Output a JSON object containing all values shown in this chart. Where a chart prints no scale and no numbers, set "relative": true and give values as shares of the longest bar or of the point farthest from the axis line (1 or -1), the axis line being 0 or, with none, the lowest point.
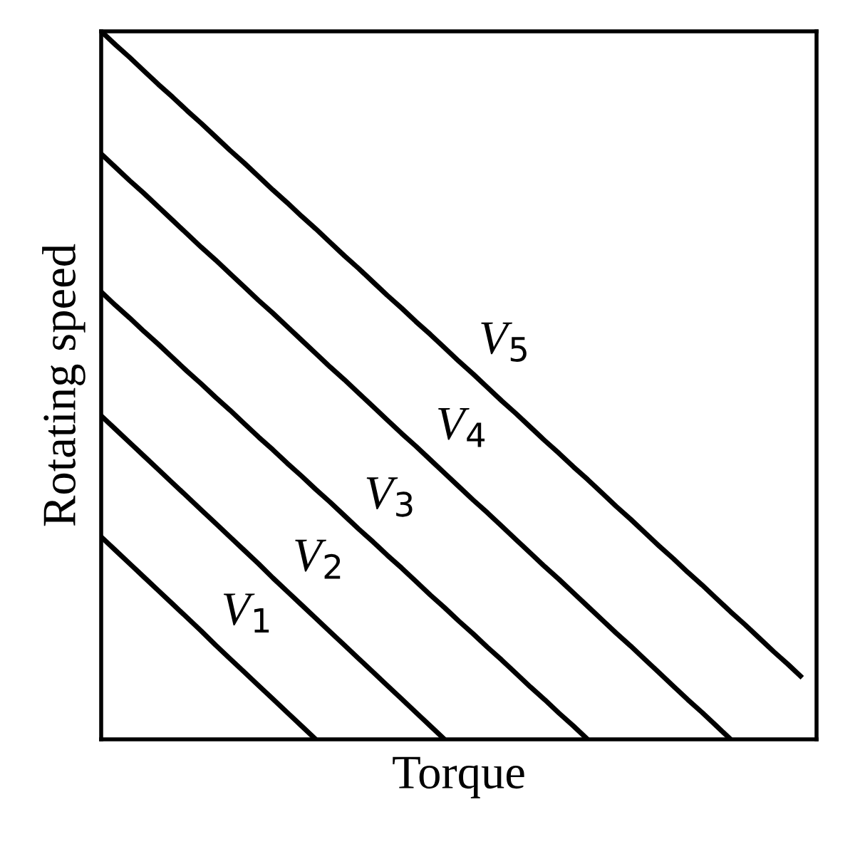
{
  "chart_data": {
    "type": "line",
    "relative": true,
    "xlabel": "Torque",
    "ylabel": "Rotating speed",
    "tick_labels": false,
    "legend": false,
    "marker": "none",
    "line_style": "solid",
    "categories": [
      null,
      null,
      null,
      null,
      null,
      null,
      null,
      null,
      null,
      null,
      null,
      null,
      null,
      null,
      null,
      null,
      null,
      null,
      null,
      null,
      null,
      null,
      null,
      null,
      null,
      null,
      null,
      null,
      null,
      null,
      null,
      null,
      null,
      null,
      null,
      null,
      null,
      null,
      null,
      null,
      null,
      null,
      null,
      null,
      null,
      null,
      null,
      null,
      null,
      null,
      null
    ],
    "series": [
      {
        "name": "V$_{1}$",
        "color": "#000000",
        "values": [
          0.286,
          0.267,
          0.248,
          0.229,
          0.21,
          0.191,
          0.172,
          0.153,
          0.133,
          0.114,
          0.095,
          0.076,
          0.057,
          0.038,
          0.019,
          0,
          null,
          null,
          null,
          null,
          null,
          null,
          null,
          null,
          null,
          null,
          null,
          null,
          null,
          null,
          null,
          null,
          null,
          null,
          null,
          null,
          null,
          null,
          null,
          null,
          null,
          null,
          null,
          null,
          null,
          null,
          null,
          null,
          null,
          null,
          null
        ]
      },
      {
        "name": "V$_{2}$",
        "color": "#000000",
        "values": [
          0.457,
          0.438,
          0.419,
          0.4,
          0.381,
          0.362,
          0.343,
          0.324,
          0.305,
          0.286,
          0.267,
          0.248,
          0.228,
          0.209,
          0.19,
          0.171,
          0.152,
          0.133,
          0.114,
          0.095,
          0.076,
          0.057,
          0.038,
          0.019,
          0,
          null,
          null,
          null,
          null,
          null,
          null,
          null,
          null,
          null,
          null,
          null,
          null,
          null,
          null,
          null,
          null,
          null,
          null,
          null,
          null,
          null,
          null,
          null,
          null,
          null,
          null
        ]
      },
      {
        "name": "V$_{3}$",
        "color": "#000000",
        "values": [
          0.632,
          0.613,
          0.595,
          0.576,
          0.558,
          0.539,
          0.52,
          0.502,
          0.483,
          0.465,
          0.446,
          0.427,
          0.409,
          0.39,
          0.372,
          0.353,
          0.335,
          0.316,
          0.297,
          0.279,
          0.26,
          0.242,
          0.223,
          0.204,
          0.186,
          0.167,
          0.149,
          0.13,
          0.112,
          0.093,
          0.074,
          0.056,
          0.037,
          0.019,
          0,
          null,
          null,
          null,
          null,
          null,
          null,
          null,
          null,
          null,
          null,
          null,
          null,
          null,
          null,
          null,
          null
        ]
      },
      {
        "name": "V$_{4}$",
        "color": "#000000",
        "values": [
          0.827,
          0.808,
          0.789,
          0.771,
          0.752,
          0.733,
          0.714,
          0.695,
          0.677,
          0.658,
          0.639,
          0.62,
          0.602,
          0.583,
          0.564,
          0.545,
          0.526,
          0.508,
          0.489,
          0.47,
          0.451,
          0.432,
          0.414,
          0.395,
          0.376,
          0.357,
          0.338,
          0.32,
          0.301,
          0.282,
          0.263,
          0.244,
          0.226,
          0.207,
          0.188,
          0.169,
          0.15,
          0.132,
          0.113,
          0.094,
          0.075,
          0.056,
          0.038,
          0.019,
          0,
          null,
          null,
          null,
          null,
          null,
          null
        ]
      },
      {
        "name": "V$_{5}$",
        "color": "#000000",
        "values": [
          1,
          0.981,
          0.963,
          0.944,
          0.925,
          0.907,
          0.888,
          0.87,
          0.851,
          0.832,
          0.814,
          0.795,
          0.776,
          0.758,
          0.739,
          0.721,
          0.702,
          0.683,
          0.665,
          0.646,
          0.627,
          0.609,
          0.59,
          0.572,
          0.553,
          0.534,
          0.516,
          0.497,
          0.478,
          0.46,
          0.441,
          0.422,
          0.404,
          0.385,
          0.367,
          0.348,
          0.329,
          0.311,
          0.292,
          0.273,
          0.255,
          0.236,
          0.218,
          0.199,
          0.18,
          0.162,
          0.143,
          0.124,
          0.106,
          0.087,
          null
        ]
      }
    ]
  }
}
